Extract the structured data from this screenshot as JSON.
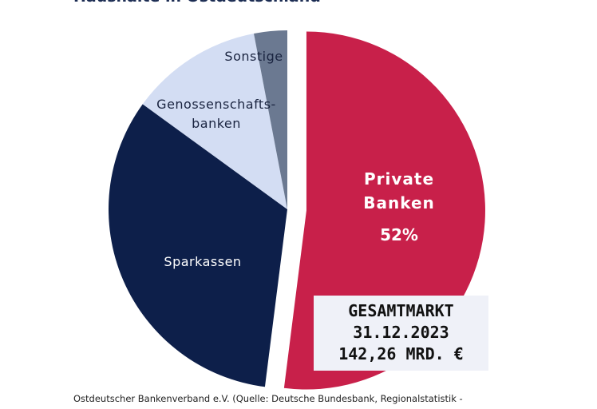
{
  "header": {
    "title_line1": "",
    "title_line2": "Haushalte in Ostdeutschland"
  },
  "chart_data": {
    "type": "pie",
    "title": "Haushalte in Ostdeutschland",
    "slices": [
      {
        "label": "Private Banken",
        "value": 52,
        "value_label": "52%",
        "color": "#c8204a",
        "exploded": true
      },
      {
        "label": "Sparkassen",
        "value": 33,
        "color": "#0d1f4a"
      },
      {
        "label": "Genossenschafts-banken",
        "value": 12,
        "color": "#d3ddf3"
      },
      {
        "label": "Sonstige",
        "value": 3,
        "color": "#6b7991"
      }
    ],
    "start_angle_deg": 0,
    "direction": "clockwise",
    "legend": "none"
  },
  "total_box": {
    "line1": "GESAMTMARKT",
    "line2": "31.12.2023",
    "line3": "142,26 MRD. €"
  },
  "footer": {
    "source": "Ostdeutscher Bankenverband e.V. (Quelle: Deutsche Bundesbank, Regionalstatistik -"
  }
}
